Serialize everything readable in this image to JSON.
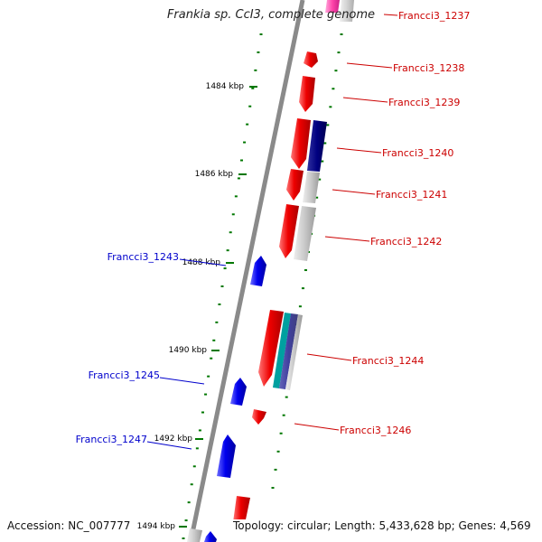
{
  "header": {
    "title": "Frankia sp. CcI3, complete genome"
  },
  "footer": {
    "accession": "Accession: NC_007777",
    "summary": "Topology: circular; Length: 5,433,628 bp; Genes: 4,569"
  },
  "colors": {
    "forward": "#ee0000",
    "reverse": "#0000ee",
    "tick": "#007700",
    "backbone": "#888888",
    "dark_blue": "#000080",
    "teal": "#00a0a0",
    "magenta": "#ff00aa",
    "grey": "#bbbbbb"
  },
  "ruler": {
    "ticks": [
      {
        "label": "1484 kbp"
      },
      {
        "label": "1486 kbp"
      },
      {
        "label": "1488 kbp"
      },
      {
        "label": "1490 kbp"
      },
      {
        "label": "1492 kbp"
      },
      {
        "label": "1494 kbp"
      }
    ]
  },
  "genes": {
    "forward": [
      {
        "name": "Francci3_1237"
      },
      {
        "name": "Francci3_1238"
      },
      {
        "name": "Francci3_1239"
      },
      {
        "name": "Francci3_1240"
      },
      {
        "name": "Francci3_1241"
      },
      {
        "name": "Francci3_1242"
      },
      {
        "name": "Francci3_1244"
      },
      {
        "name": "Francci3_1246"
      }
    ],
    "reverse": [
      {
        "name": "Francci3_1243"
      },
      {
        "name": "Francci3_1245"
      },
      {
        "name": "Francci3_1247"
      }
    ]
  }
}
